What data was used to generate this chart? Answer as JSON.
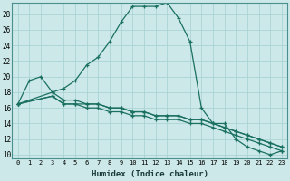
{
  "xlabel": "Humidex (Indice chaleur)",
  "bg_color": "#cce8e8",
  "grid_color": "#aad4d4",
  "line_color": "#1a7060",
  "xlim": [
    -0.5,
    23.5
  ],
  "ylim": [
    9.5,
    29.5
  ],
  "yticks": [
    10,
    12,
    14,
    16,
    18,
    20,
    22,
    24,
    26,
    28
  ],
  "xticks": [
    0,
    1,
    2,
    3,
    4,
    5,
    6,
    7,
    8,
    9,
    10,
    11,
    12,
    13,
    14,
    15,
    16,
    17,
    18,
    19,
    20,
    21,
    22,
    23
  ],
  "series": [
    {
      "x": [
        0,
        1,
        2,
        3,
        4,
        5,
        6,
        7,
        8,
        9,
        10,
        11,
        12,
        13,
        14,
        15,
        16,
        17,
        18,
        19,
        20,
        21,
        22,
        23
      ],
      "y": [
        16.5,
        19.5,
        20.0,
        18.0,
        18.5,
        19.5,
        21.5,
        22.5,
        24.5,
        27.0,
        29.0,
        29.0,
        29.0,
        29.5,
        27.5,
        24.5,
        16.0,
        14.0,
        14.0,
        12.0,
        11.0,
        10.5,
        10.0,
        10.5
      ]
    },
    {
      "x": [
        0,
        3,
        4,
        5,
        6,
        7,
        8,
        9,
        10,
        11,
        12,
        13,
        14,
        15,
        16,
        17,
        18,
        19,
        20,
        21,
        22,
        23
      ],
      "y": [
        16.5,
        17.5,
        16.5,
        16.5,
        16.5,
        16.5,
        16.0,
        16.0,
        15.5,
        15.5,
        15.0,
        15.0,
        15.0,
        14.5,
        14.5,
        14.0,
        13.5,
        13.0,
        12.5,
        12.0,
        11.5,
        11.0
      ]
    },
    {
      "x": [
        0,
        3,
        4,
        5,
        6,
        7,
        8,
        9,
        10,
        11,
        12,
        13,
        14,
        15,
        16,
        17,
        18,
        19,
        20,
        21,
        22,
        23
      ],
      "y": [
        16.5,
        17.5,
        16.5,
        16.5,
        16.0,
        16.0,
        15.5,
        15.5,
        15.0,
        15.0,
        14.5,
        14.5,
        14.5,
        14.0,
        14.0,
        13.5,
        13.0,
        12.5,
        12.0,
        11.5,
        11.0,
        10.5
      ]
    },
    {
      "x": [
        0,
        3,
        4,
        5,
        6,
        7,
        8,
        9,
        10,
        11,
        12,
        13,
        14,
        15,
        16,
        17,
        18,
        19,
        20,
        21,
        22,
        23
      ],
      "y": [
        16.5,
        18.0,
        17.0,
        17.0,
        16.5,
        16.5,
        16.0,
        16.0,
        15.5,
        15.5,
        15.0,
        15.0,
        15.0,
        14.5,
        14.5,
        14.0,
        13.5,
        13.0,
        12.5,
        12.0,
        11.5,
        11.0
      ]
    }
  ]
}
